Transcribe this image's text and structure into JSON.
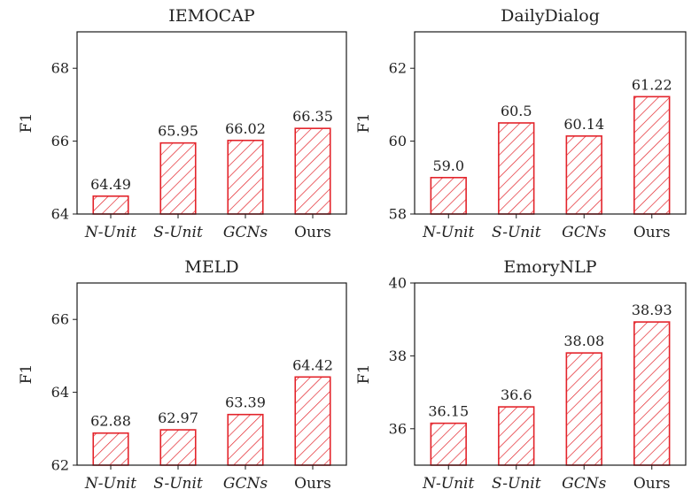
{
  "colors": {
    "bar_edge": "#e3242b",
    "axis": "#1a1a1a",
    "text": "#222222"
  },
  "chart_data": [
    {
      "type": "bar",
      "title": "IEMOCAP",
      "ylabel": "F1",
      "xlabel": "",
      "categories": [
        "N-Unit",
        "S-Unit",
        "GCNs",
        "Ours"
      ],
      "italic_categories": [
        true,
        true,
        true,
        false
      ],
      "values": [
        64.49,
        65.95,
        66.02,
        66.35
      ],
      "value_labels": [
        "64.49",
        "65.95",
        "66.02",
        "66.35"
      ],
      "ylim": [
        64,
        69
      ],
      "yticks": [
        64,
        66,
        68
      ],
      "grid": false,
      "hatch": "diagonal"
    },
    {
      "type": "bar",
      "title": "DailyDialog",
      "ylabel": "F1",
      "xlabel": "",
      "categories": [
        "N-Unit",
        "S-Unit",
        "GCNs",
        "Ours"
      ],
      "italic_categories": [
        true,
        true,
        true,
        false
      ],
      "values": [
        59.0,
        60.5,
        60.14,
        61.22
      ],
      "value_labels": [
        "59.0",
        "60.5",
        "60.14",
        "61.22"
      ],
      "ylim": [
        58,
        63
      ],
      "yticks": [
        58,
        60,
        62
      ],
      "grid": false,
      "hatch": "diagonal"
    },
    {
      "type": "bar",
      "title": "MELD",
      "ylabel": "F1",
      "xlabel": "",
      "categories": [
        "N-Unit",
        "S-Unit",
        "GCNs",
        "Ours"
      ],
      "italic_categories": [
        true,
        true,
        true,
        false
      ],
      "values": [
        62.88,
        62.97,
        63.39,
        64.42
      ],
      "value_labels": [
        "62.88",
        "62.97",
        "63.39",
        "64.42"
      ],
      "ylim": [
        62,
        67
      ],
      "yticks": [
        62,
        64,
        66
      ],
      "grid": false,
      "hatch": "diagonal"
    },
    {
      "type": "bar",
      "title": "EmoryNLP",
      "ylabel": "F1",
      "xlabel": "",
      "categories": [
        "N-Unit",
        "S-Unit",
        "GCNs",
        "Ours"
      ],
      "italic_categories": [
        true,
        true,
        true,
        false
      ],
      "values": [
        36.15,
        36.6,
        38.08,
        38.93
      ],
      "value_labels": [
        "36.15",
        "36.6",
        "38.08",
        "38.93"
      ],
      "ylim": [
        35,
        40
      ],
      "yticks": [
        36,
        38,
        40
      ],
      "grid": false,
      "hatch": "diagonal"
    }
  ]
}
